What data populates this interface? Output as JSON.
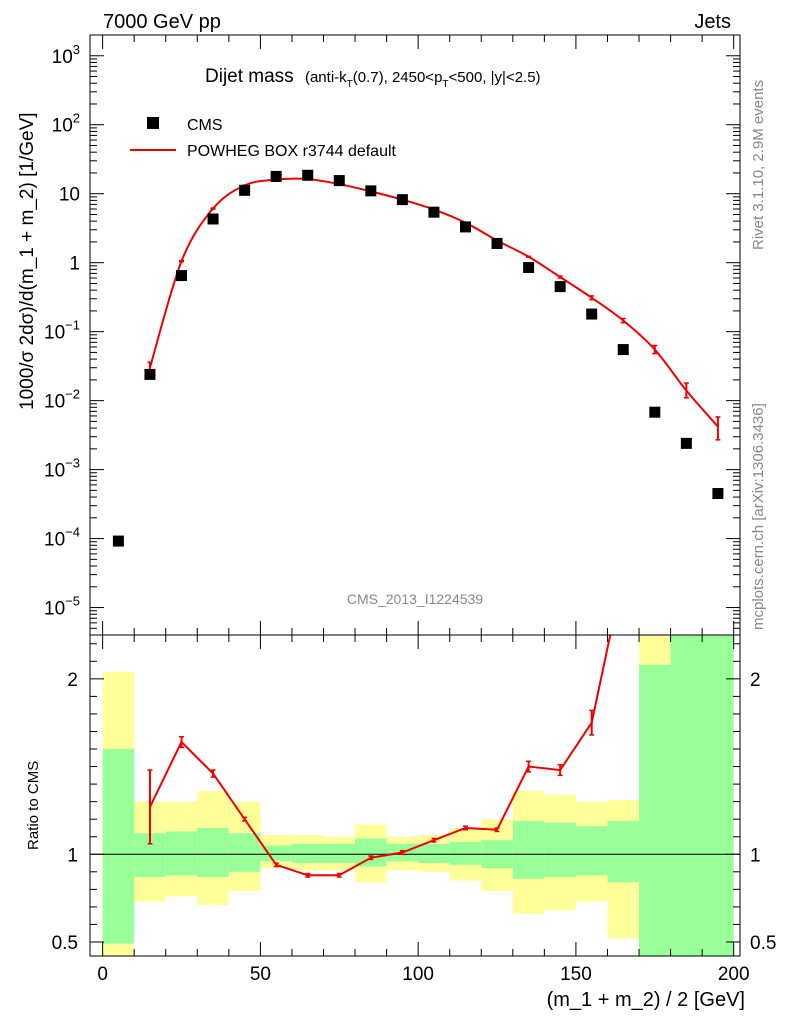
{
  "header": {
    "left": "7000 GeV pp",
    "right": "Jets"
  },
  "side_text": {
    "rivet": "Rivet 3.1.10,  2.9M events",
    "source": "mcplots.cern.ch [arXiv:1306.3436]"
  },
  "watermark": "CMS_2013_I1224539",
  "colors": {
    "cms": "#000000",
    "mc": "#ee0000",
    "band_inner": "#99ff99",
    "band_outer": "#ffff99"
  },
  "chart_data": [
    {
      "type": "scatter",
      "panel": "main",
      "title": "Dijet mass",
      "title_suffix_parts": [
        "(anti-k",
        "T",
        "(0.7), 2450<p",
        "T",
        "<500, |y|<2.5)"
      ],
      "ylabel": "1000/σ 2dσ)/d(m_1 + m_2) [1/GeV]",
      "xlim": [
        -4,
        202
      ],
      "ylim": [
        4e-06,
        2000
      ],
      "yscale": "log",
      "yticks": [
        {
          "v": 1000.0,
          "m": "10",
          "e": "3"
        },
        {
          "v": 100.0,
          "m": "10",
          "e": "2"
        },
        {
          "v": 10,
          "m": "10",
          "e": ""
        },
        {
          "v": 1,
          "m": "1",
          "e": ""
        },
        {
          "v": 0.1,
          "m": "10",
          "e": "−1"
        },
        {
          "v": 0.01,
          "m": "10",
          "e": "−2"
        },
        {
          "v": 0.001,
          "m": "10",
          "e": "−3"
        },
        {
          "v": 0.0001,
          "m": "10",
          "e": "−4"
        },
        {
          "v": 1e-05,
          "m": "10",
          "e": "−5"
        }
      ],
      "legend_position": "top-left",
      "series": [
        {
          "name": "CMS",
          "x": [
            5,
            15,
            25,
            35,
            45,
            55,
            65,
            75,
            85,
            95,
            105,
            115,
            125,
            135,
            145,
            155,
            165,
            175,
            185,
            195
          ],
          "y": [
            9.2e-05,
            0.024,
            0.65,
            4.3,
            11.2,
            17.8,
            18.5,
            15.5,
            11.0,
            8.2,
            5.4,
            3.3,
            1.9,
            0.85,
            0.45,
            0.18,
            0.055,
            0.0068,
            0.0024,
            0.00045
          ]
        },
        {
          "name": "POWHEG BOX r3744 default",
          "x": [
            15,
            25,
            35,
            45,
            55,
            65,
            75,
            85,
            95,
            105,
            115,
            125,
            135,
            145,
            155,
            165,
            175,
            185,
            195
          ],
          "y": [
            0.03,
            1.05,
            6.1,
            13.2,
            16.0,
            16.3,
            13.8,
            10.8,
            8.2,
            5.9,
            3.8,
            2.1,
            1.22,
            0.62,
            0.31,
            0.145,
            0.055,
            0.014,
            0.0042
          ],
          "err_hi": [
            0.036,
            1.07,
            6.2,
            13.3,
            16.1,
            16.4,
            13.9,
            10.9,
            8.3,
            6.0,
            3.85,
            2.12,
            1.24,
            0.64,
            0.33,
            0.155,
            0.063,
            0.018,
            0.0058
          ],
          "err_lo": [
            0.025,
            1.03,
            6.0,
            13.1,
            15.9,
            16.2,
            13.7,
            10.7,
            8.1,
            5.8,
            3.75,
            2.08,
            1.2,
            0.6,
            0.29,
            0.135,
            0.048,
            0.011,
            0.0027
          ]
        }
      ]
    },
    {
      "type": "line",
      "panel": "ratio",
      "ylabel": "Ratio to CMS",
      "xlabel": "(m_1 + m_2) / 2 [GeV]",
      "xlim": [
        -4,
        202
      ],
      "ylim": [
        0.42,
        2.25
      ],
      "xticks": [
        0,
        50,
        100,
        150,
        200
      ],
      "yticks": [
        0.5,
        1,
        2
      ],
      "reference_line": 1,
      "bands": {
        "edges": [
          0,
          10,
          20,
          30,
          40,
          50,
          60,
          70,
          80,
          90,
          100,
          110,
          120,
          130,
          140,
          150,
          160,
          170,
          180,
          190,
          200
        ],
        "inner_lo": [
          0.49,
          0.87,
          0.88,
          0.87,
          0.9,
          0.96,
          0.95,
          0.95,
          0.93,
          0.96,
          0.95,
          0.94,
          0.92,
          0.86,
          0.87,
          0.88,
          0.84,
          0.42,
          0.42,
          0.42
        ],
        "inner_hi": [
          1.6,
          1.12,
          1.13,
          1.15,
          1.12,
          1.05,
          1.06,
          1.06,
          1.09,
          1.06,
          1.06,
          1.07,
          1.08,
          1.19,
          1.18,
          1.16,
          1.19,
          2.08,
          2.25,
          2.25
        ],
        "outer_lo": [
          0.42,
          0.73,
          0.76,
          0.71,
          0.79,
          0.92,
          0.91,
          0.91,
          0.84,
          0.91,
          0.9,
          0.85,
          0.79,
          0.66,
          0.68,
          0.73,
          0.52,
          0.42,
          0.42,
          0.42
        ],
        "outer_hi": [
          2.04,
          1.3,
          1.3,
          1.36,
          1.3,
          1.11,
          1.11,
          1.1,
          1.17,
          1.1,
          1.11,
          1.15,
          1.2,
          1.36,
          1.34,
          1.3,
          1.31,
          2.25,
          2.25,
          2.25
        ]
      },
      "series": [
        {
          "name": "POWHEG BOX r3744 default",
          "x": [
            15,
            25,
            35,
            45,
            55,
            65,
            75,
            85,
            95,
            105,
            115,
            125,
            135,
            145,
            155,
            165
          ],
          "y": [
            1.27,
            1.64,
            1.46,
            1.2,
            0.94,
            0.88,
            0.88,
            0.98,
            1.01,
            1.08,
            1.15,
            1.14,
            1.5,
            1.48,
            1.75,
            2.6
          ],
          "err_hi": [
            1.48,
            1.67,
            1.48,
            1.21,
            0.95,
            0.89,
            0.89,
            0.99,
            1.02,
            1.09,
            1.16,
            1.15,
            1.53,
            1.51,
            1.82,
            2.6
          ],
          "err_lo": [
            1.06,
            1.61,
            1.44,
            1.19,
            0.93,
            0.87,
            0.87,
            0.97,
            1.0,
            1.07,
            1.14,
            1.13,
            1.47,
            1.45,
            1.68,
            2.6
          ]
        }
      ]
    }
  ]
}
